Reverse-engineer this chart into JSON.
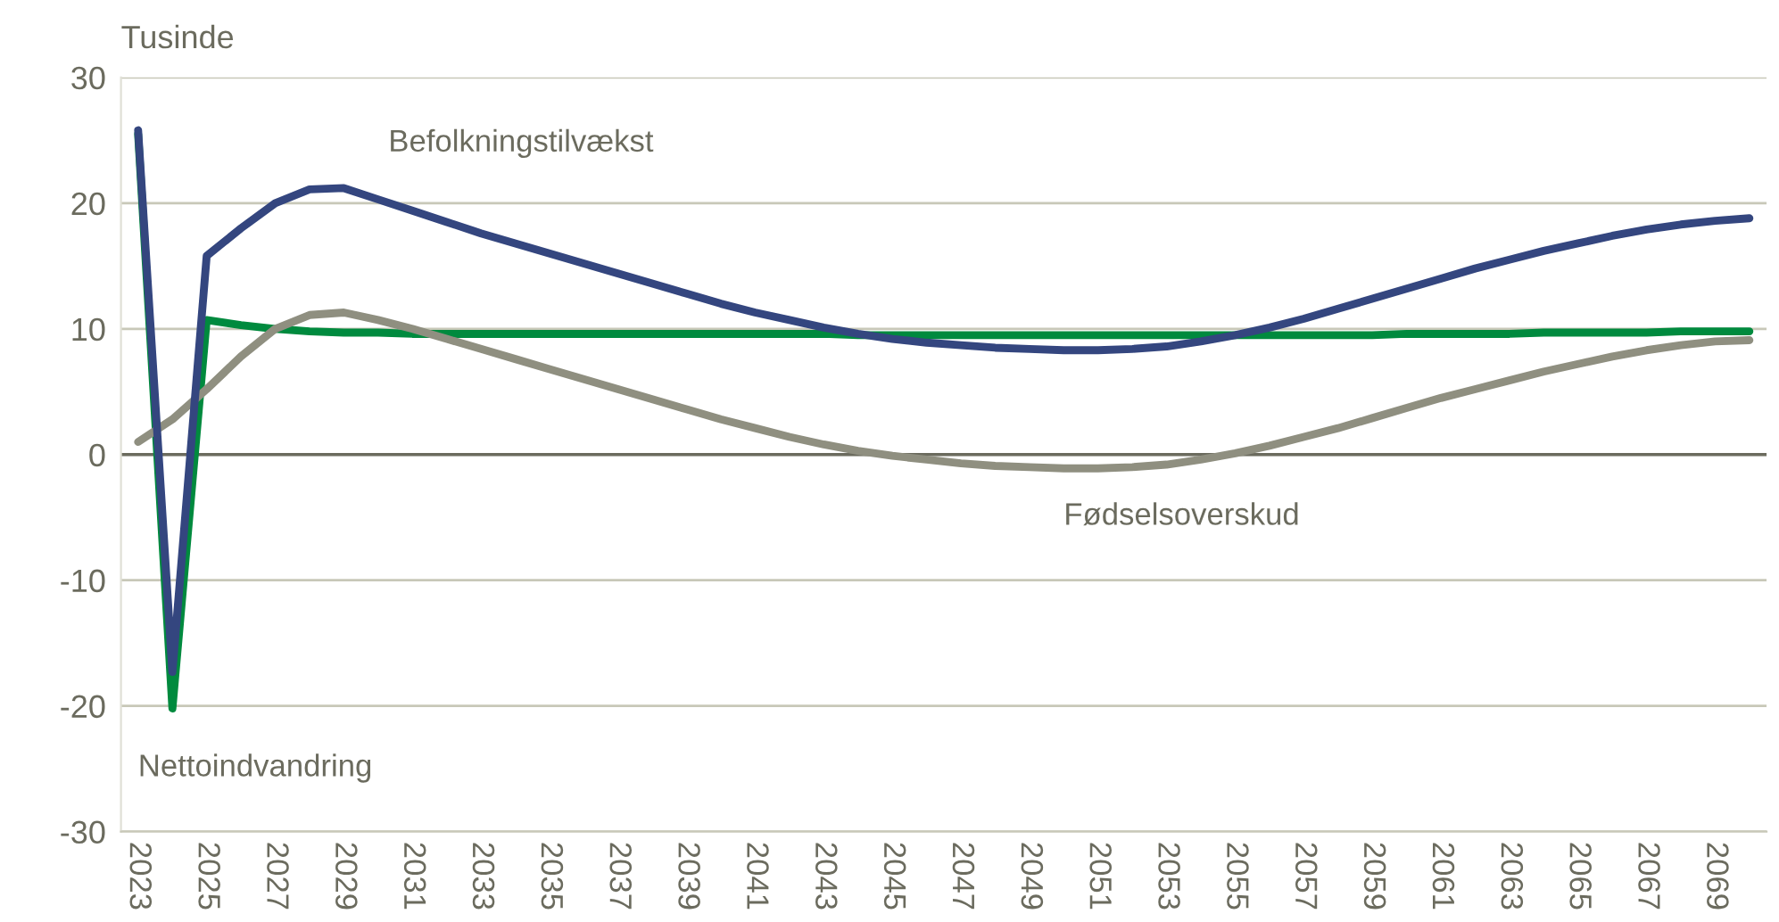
{
  "chart_data": {
    "type": "line",
    "ylabel": "Tusinde",
    "x": [
      2023,
      2024,
      2025,
      2026,
      2027,
      2028,
      2029,
      2030,
      2031,
      2032,
      2033,
      2034,
      2035,
      2036,
      2037,
      2038,
      2039,
      2040,
      2041,
      2042,
      2043,
      2044,
      2045,
      2046,
      2047,
      2048,
      2049,
      2050,
      2051,
      2052,
      2053,
      2054,
      2055,
      2056,
      2057,
      2058,
      2059,
      2060,
      2061,
      2062,
      2063,
      2064,
      2065,
      2066,
      2067,
      2068,
      2069,
      2070
    ],
    "series": [
      {
        "name": "Nettoindvandring",
        "color": "#008a3e",
        "values": [
          25.5,
          -20.2,
          10.7,
          10.3,
          10.0,
          9.8,
          9.7,
          9.7,
          9.6,
          9.6,
          9.6,
          9.6,
          9.6,
          9.6,
          9.6,
          9.6,
          9.6,
          9.6,
          9.6,
          9.6,
          9.6,
          9.5,
          9.5,
          9.5,
          9.5,
          9.5,
          9.5,
          9.5,
          9.5,
          9.5,
          9.5,
          9.5,
          9.5,
          9.5,
          9.5,
          9.5,
          9.5,
          9.6,
          9.6,
          9.6,
          9.6,
          9.7,
          9.7,
          9.7,
          9.7,
          9.8,
          9.8,
          9.8
        ]
      },
      {
        "name": "Fødselsoverskud",
        "color": "#8f8f80",
        "values": [
          1.0,
          2.8,
          5.2,
          7.8,
          10.0,
          11.1,
          11.3,
          10.7,
          10.0,
          9.2,
          8.4,
          7.6,
          6.8,
          6.0,
          5.2,
          4.4,
          3.6,
          2.8,
          2.1,
          1.4,
          0.8,
          0.3,
          -0.1,
          -0.4,
          -0.7,
          -0.9,
          -1.0,
          -1.1,
          -1.1,
          -1.0,
          -0.8,
          -0.4,
          0.1,
          0.7,
          1.4,
          2.1,
          2.9,
          3.7,
          4.5,
          5.2,
          5.9,
          6.6,
          7.2,
          7.8,
          8.3,
          8.7,
          9.0,
          9.1
        ]
      },
      {
        "name": "Befolkningstilvækst",
        "color": "#34467f",
        "values": [
          25.8,
          -17.3,
          15.8,
          18.0,
          20.0,
          21.1,
          21.2,
          20.3,
          19.4,
          18.5,
          17.6,
          16.8,
          16.0,
          15.2,
          14.4,
          13.6,
          12.8,
          12.0,
          11.3,
          10.7,
          10.1,
          9.6,
          9.2,
          8.9,
          8.7,
          8.5,
          8.4,
          8.3,
          8.3,
          8.4,
          8.6,
          9.0,
          9.5,
          10.1,
          10.8,
          11.6,
          12.4,
          13.2,
          14.0,
          14.8,
          15.5,
          16.2,
          16.8,
          17.4,
          17.9,
          18.3,
          18.6,
          18.8
        ]
      }
    ],
    "xlim": [
      2022.5,
      2070.5
    ],
    "xticks": [
      2023,
      2025,
      2027,
      2029,
      2031,
      2033,
      2035,
      2037,
      2039,
      2041,
      2043,
      2045,
      2047,
      2049,
      2051,
      2053,
      2055,
      2057,
      2059,
      2061,
      2063,
      2065,
      2067,
      2069
    ],
    "ylim": [
      -30,
      30
    ],
    "yticks": [
      -30,
      -20,
      -10,
      0,
      10,
      20,
      30
    ],
    "grid": "y",
    "legend": false,
    "marker": "none",
    "line_style": "solid"
  }
}
